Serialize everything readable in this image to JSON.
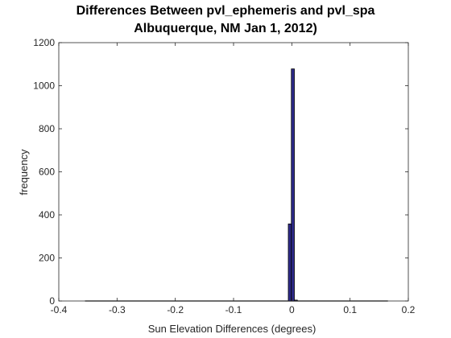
{
  "chart_data": {
    "type": "bar",
    "title_lines": [
      "Differences Between pvl_ephemeris and pvl_spa",
      "Albuquerque, NM Jan 1, 2012)"
    ],
    "xlabel": "Sun Elevation Differences (degrees)",
    "ylabel": "frequency",
    "xlim": [
      -0.4,
      0.2
    ],
    "ylim": [
      0,
      1200
    ],
    "xticks": [
      -0.4,
      -0.3,
      -0.2,
      -0.1,
      0,
      0.1,
      0.2
    ],
    "xtick_labels": [
      "-0.4",
      "-0.3",
      "-0.2",
      "-0.1",
      "0",
      "0.1",
      "0.2"
    ],
    "yticks": [
      0,
      200,
      400,
      600,
      800,
      1000,
      1200
    ],
    "ytick_labels": [
      "0",
      "200",
      "400",
      "600",
      "800",
      "1000",
      "1200"
    ],
    "bin_edges": [
      -0.355,
      0.165
    ],
    "bin_count": 100,
    "bins": [
      {
        "x": -0.0034,
        "value": 358
      },
      {
        "x": 0.0018,
        "value": 1078
      },
      {
        "x": 0.007,
        "value": 4
      }
    ],
    "grid": false,
    "colors": {
      "bar_fill": "#2e2a8a",
      "bar_edge": "#000000",
      "axis": "#262626"
    }
  }
}
